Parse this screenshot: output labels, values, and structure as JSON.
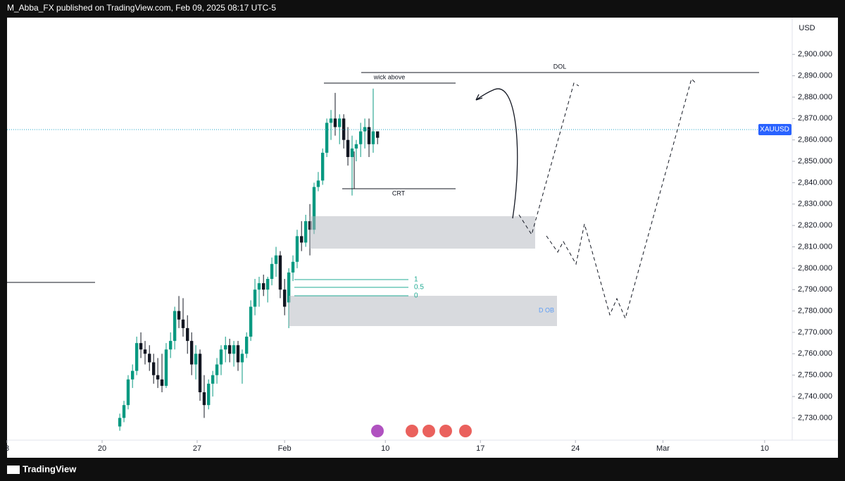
{
  "header": {
    "publisher": "M_Abba_FX published on TradingView.com, Feb 09, 2025 08:17 UTC-5"
  },
  "footer": {
    "brand": "TradingView"
  },
  "chart_data": {
    "type": "candlestick",
    "symbol": "XAUUSD",
    "currency": "USD",
    "up_color": "#089981",
    "down_color": "#131722",
    "grid": false,
    "annotations": {
      "wick": "wick above",
      "crt": "CRT",
      "dol": "DOL",
      "ob": "D OB",
      "fib_1": "1",
      "fib_half": "0.5",
      "fib_0": "0"
    },
    "xlim": [
      -5,
      36.3
    ],
    "xticks": [
      {
        "value": -5,
        "label": "3"
      },
      {
        "value": 0,
        "label": "20"
      },
      {
        "value": 5,
        "label": "27"
      },
      {
        "value": 9.6,
        "label": "Feb"
      },
      {
        "value": 14.9,
        "label": "10"
      },
      {
        "value": 19.9,
        "label": "17"
      },
      {
        "value": 24.9,
        "label": "24"
      },
      {
        "value": 29.5,
        "label": "Mar"
      },
      {
        "value": 34.85,
        "label": "10"
      }
    ],
    "ylim": [
      2719.6,
      2917.2
    ],
    "yticks": [
      {
        "value": 2730,
        "label": "2,730.000"
      },
      {
        "value": 2740,
        "label": "2,740.000"
      },
      {
        "value": 2750,
        "label": "2,750.000"
      },
      {
        "value": 2760,
        "label": "2,760.000"
      },
      {
        "value": 2770,
        "label": "2,770.000"
      },
      {
        "value": 2780,
        "label": "2,780.000"
      },
      {
        "value": 2790,
        "label": "2,790.000"
      },
      {
        "value": 2800,
        "label": "2,800.000"
      },
      {
        "value": 2810,
        "label": "2,810.000"
      },
      {
        "value": 2820,
        "label": "2,820.000"
      },
      {
        "value": 2830,
        "label": "2,830.000"
      },
      {
        "value": 2840,
        "label": "2,840.000"
      },
      {
        "value": 2850,
        "label": "2,850.000"
      },
      {
        "value": 2860,
        "label": "2,860.000"
      },
      {
        "value": 2870,
        "label": "2,870.000"
      },
      {
        "value": 2880,
        "label": "2,880.000"
      },
      {
        "value": 2890,
        "label": "2,890.000"
      },
      {
        "value": 2900,
        "label": "2,900.000"
      }
    ],
    "x": [
      0.93,
      1.15,
      1.37,
      1.6,
      1.82,
      2.04,
      2.26,
      2.49,
      2.71,
      2.93,
      3.15,
      3.37,
      3.6,
      3.82,
      4.04,
      4.26,
      4.49,
      4.71,
      4.93,
      5.15,
      5.37,
      5.6,
      5.82,
      6.04,
      6.26,
      6.49,
      6.71,
      6.93,
      7.15,
      7.37,
      7.6,
      7.82,
      8.04,
      8.26,
      8.49,
      8.71,
      8.93,
      9.15,
      9.37,
      9.6,
      9.82,
      10.04,
      10.26,
      10.49,
      10.71,
      10.93,
      11.15,
      11.37,
      11.6,
      11.82,
      12.04,
      12.26,
      12.49,
      12.71,
      12.93,
      13.15,
      13.37,
      13.6,
      13.82,
      14.04,
      14.26,
      14.49
    ],
    "open": [
      2726,
      2730,
      2736,
      2748,
      2752,
      2765,
      2762,
      2760,
      2756,
      2750,
      2748,
      2745,
      2762,
      2766,
      2780,
      2776,
      2772,
      2766,
      2755,
      2760,
      2742,
      2736,
      2746,
      2750,
      2755,
      2762,
      2764,
      2760,
      2764,
      2756,
      2760,
      2768,
      2782,
      2790,
      2793,
      2790,
      2795,
      2802,
      2806,
      2790,
      2784,
      2798,
      2803,
      2815,
      2812,
      2822,
      2818,
      2838,
      2841,
      2854,
      2868,
      2870,
      2866,
      2870,
      2860,
      2852,
      2856,
      2858,
      2864,
      2866,
      2858,
      2864
    ],
    "high": [
      2732,
      2738,
      2750,
      2755,
      2768,
      2770,
      2766,
      2764,
      2760,
      2758,
      2760,
      2765,
      2770,
      2782,
      2787,
      2786,
      2778,
      2770,
      2764,
      2762,
      2750,
      2748,
      2752,
      2758,
      2764,
      2768,
      2767,
      2766,
      2766,
      2762,
      2770,
      2785,
      2795,
      2796,
      2797,
      2796,
      2805,
      2810,
      2808,
      2795,
      2800,
      2806,
      2818,
      2822,
      2825,
      2830,
      2840,
      2845,
      2856,
      2870,
      2874,
      2882,
      2872,
      2872,
      2866,
      2862,
      2860,
      2868,
      2870,
      2870,
      2884,
      2864
    ],
    "low": [
      2724,
      2728,
      2734,
      2744,
      2750,
      2758,
      2755,
      2752,
      2746,
      2744,
      2742,
      2744,
      2758,
      2762,
      2772,
      2768,
      2760,
      2750,
      2748,
      2738,
      2730,
      2734,
      2740,
      2746,
      2750,
      2756,
      2756,
      2754,
      2752,
      2746,
      2758,
      2766,
      2778,
      2782,
      2787,
      2784,
      2792,
      2796,
      2786,
      2778,
      2772,
      2794,
      2800,
      2808,
      2810,
      2806,
      2816,
      2836,
      2839,
      2852,
      2860,
      2862,
      2858,
      2856,
      2848,
      2834,
      2850,
      2852,
      2856,
      2852,
      2854,
      2858
    ],
    "close": [
      2730,
      2736,
      2748,
      2752,
      2765,
      2762,
      2760,
      2756,
      2750,
      2748,
      2745,
      2762,
      2766,
      2780,
      2776,
      2772,
      2766,
      2755,
      2760,
      2742,
      2736,
      2746,
      2750,
      2755,
      2762,
      2764,
      2760,
      2764,
      2756,
      2760,
      2768,
      2782,
      2790,
      2793,
      2790,
      2795,
      2802,
      2806,
      2790,
      2782,
      2798,
      2803,
      2815,
      2812,
      2822,
      2818,
      2838,
      2841,
      2854,
      2868,
      2870,
      2866,
      2870,
      2860,
      2852,
      2856,
      2858,
      2864,
      2866,
      2858,
      2864,
      2861
    ]
  }
}
